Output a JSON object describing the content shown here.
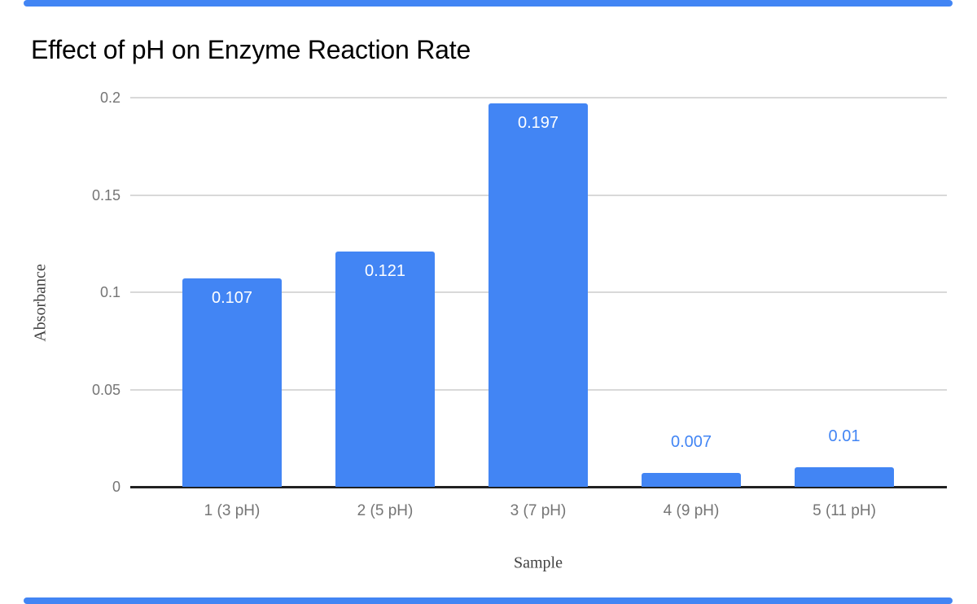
{
  "colors": {
    "accent": "#4285f4",
    "bar_fill": "#4285f4",
    "gridline": "#d9d9d9",
    "baseline": "#212121",
    "tick_text": "#757575",
    "axis_title_text": "#424242",
    "title_text": "#000000",
    "label_inside": "#ffffff",
    "label_outside": "#4285f4"
  },
  "chart_data": {
    "type": "bar",
    "title": "Effect of pH on Enzyme Reaction Rate",
    "xlabel": "Sample",
    "ylabel": "Absorbance",
    "categories": [
      "1 (3 pH)",
      "2 (5 pH)",
      "3 (7 pH)",
      "4 (9 pH)",
      "5 (11 pH)"
    ],
    "values": [
      0.107,
      0.121,
      0.197,
      0.007,
      0.01
    ],
    "data_labels": [
      "0.107",
      "0.121",
      "0.197",
      "0.007",
      "0.01"
    ],
    "ylim": [
      0,
      0.2
    ],
    "yticks": [
      0,
      0.05,
      0.1,
      0.15,
      0.2
    ],
    "ytick_labels": [
      "0",
      "0.05",
      "0.1",
      "0.15",
      "0.2"
    ],
    "grid": true,
    "legend": "none",
    "data_label_placement": "inside-top, outside-top when bar too short"
  }
}
